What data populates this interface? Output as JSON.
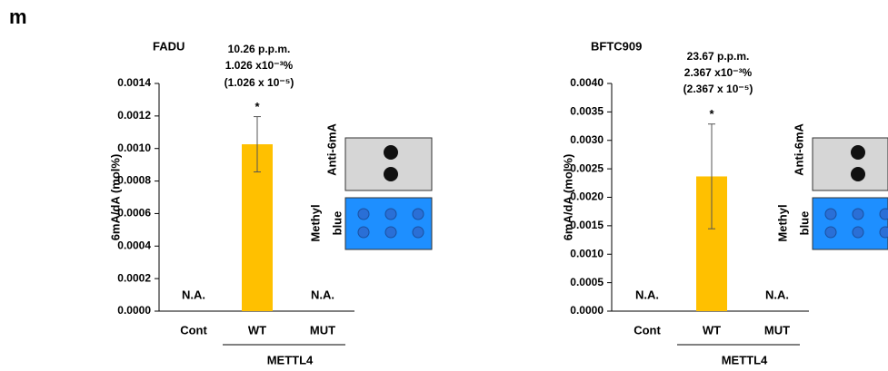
{
  "panel_label": "m",
  "chart_data": [
    {
      "type": "bar",
      "title": "FADU",
      "ylabel": "6mA/dA (mol%)",
      "group_label": "METTL4",
      "categories": [
        "Cont",
        "WT",
        "MUT"
      ],
      "values": [
        null,
        0.001026,
        null
      ],
      "errors": [
        null,
        0.00017,
        null
      ],
      "value_labels": [
        "N.A.",
        null,
        "N.A."
      ],
      "color": "#ffc000",
      "annotations": [
        "10.26 p.p.m.",
        "1.026 x10⁻³%",
        "(1.026 x 10⁻⁵)",
        "*"
      ],
      "blot_labels": [
        "Anti-6mA",
        "Methyl",
        "blue"
      ],
      "ylim": [
        0,
        0.0014
      ],
      "yticks": [
        {
          "value": 0,
          "label": "0.0000"
        },
        {
          "value": 0.0002,
          "label": "0.0002"
        },
        {
          "value": 0.0004,
          "label": "0.0004"
        },
        {
          "value": 0.0006,
          "label": "0.0006"
        },
        {
          "value": 0.0008,
          "label": "0.0008"
        },
        {
          "value": 0.001,
          "label": "0.0010"
        },
        {
          "value": 0.0012,
          "label": "0.0012"
        },
        {
          "value": 0.0014,
          "label": "0.0014"
        }
      ]
    },
    {
      "type": "bar",
      "title": "BFTC909",
      "ylabel": "6mA/dA (mol%)",
      "group_label": "METTL4",
      "categories": [
        "Cont",
        "WT",
        "MUT"
      ],
      "values": [
        null,
        0.002367,
        null
      ],
      "errors": [
        null,
        0.00092,
        null
      ],
      "value_labels": [
        "N.A.",
        null,
        "N.A."
      ],
      "color": "#ffc000",
      "annotations": [
        "23.67 p.p.m.",
        "2.367 x10⁻³%",
        "(2.367 x 10⁻⁵)",
        "*"
      ],
      "blot_labels": [
        "Anti-6mA",
        "Methyl",
        "blue"
      ],
      "ylim": [
        0,
        0.004
      ],
      "yticks": [
        {
          "value": 0,
          "label": "0.0000"
        },
        {
          "value": 0.0005,
          "label": "0.0005"
        },
        {
          "value": 0.001,
          "label": "0.0010"
        },
        {
          "value": 0.0015,
          "label": "0.0015"
        },
        {
          "value": 0.002,
          "label": "0.0020"
        },
        {
          "value": 0.0025,
          "label": "0.0025"
        },
        {
          "value": 0.003,
          "label": "0.0030"
        },
        {
          "value": 0.0035,
          "label": "0.0035"
        },
        {
          "value": 0.004,
          "label": "0.0040"
        }
      ]
    }
  ]
}
